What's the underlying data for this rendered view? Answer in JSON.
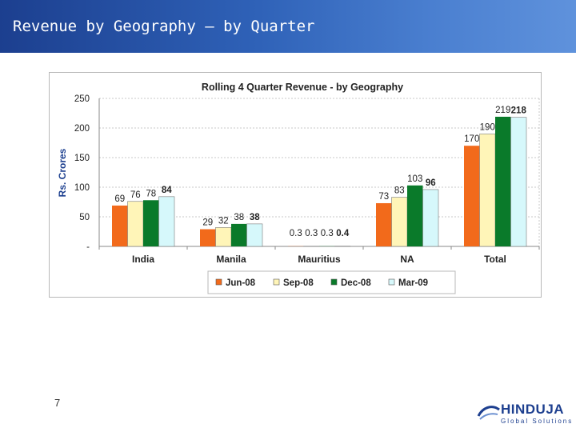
{
  "slide": {
    "title": "Revenue by Geography – by Quarter",
    "page_number": "7"
  },
  "logo": {
    "name": "HINDUJA",
    "tagline": "Global Solutions"
  },
  "chart_data": {
    "type": "bar",
    "title": "Rolling 4 Quarter Revenue - by Geography",
    "ylabel": "Rs. Crores",
    "xlabel": "",
    "ylim": [
      0,
      250
    ],
    "yticks": [
      "-",
      "50",
      "100",
      "150",
      "200",
      "250"
    ],
    "grid": true,
    "legend_position": "bottom",
    "categories": [
      "India",
      "Manila",
      "Mauritius",
      "NA",
      "Total"
    ],
    "series": [
      {
        "name": "Jun-08",
        "color": "#f26a1b",
        "values": [
          69,
          29,
          0.3,
          73,
          170
        ],
        "labels": [
          "69",
          "29",
          "0.3",
          "73",
          "170"
        ]
      },
      {
        "name": "Sep-08",
        "color": "#fff5b8",
        "values": [
          76,
          32,
          0.3,
          83,
          190
        ],
        "labels": [
          "76",
          "32",
          "0.3",
          "83",
          "190"
        ]
      },
      {
        "name": "Dec-08",
        "color": "#0a7a2a",
        "values": [
          78,
          38,
          0.3,
          103,
          219
        ],
        "labels": [
          "78",
          "38",
          "0.3",
          "103",
          "219"
        ]
      },
      {
        "name": "Mar-09",
        "color": "#d6f8fb",
        "values": [
          84,
          38,
          0.4,
          96,
          218
        ],
        "labels": [
          "84",
          "38",
          "0.4",
          "96",
          "218"
        ],
        "bold_labels": true
      }
    ],
    "colors": {
      "axis_label": "#1c3f8f",
      "text": "#222222",
      "grid": "#c8c8c8"
    }
  }
}
